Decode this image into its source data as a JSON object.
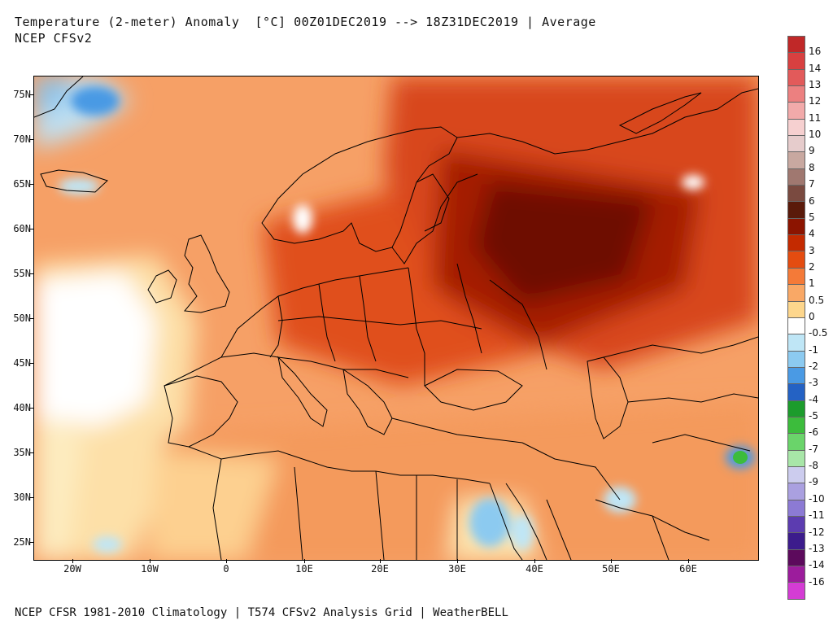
{
  "title": {
    "line1": "Temperature (2-meter) Anomaly  [°C] 00Z01DEC2019 --> 18Z31DEC2019 | Average",
    "line2": "NCEP CFSv2"
  },
  "footer": "NCEP CFSR 1981-2010 Climatology | T574 CFSv2 Analysis Grid | WeatherBELL",
  "lat_labels": [
    "75N",
    "70N",
    "65N",
    "60N",
    "55N",
    "50N",
    "45N",
    "40N",
    "35N",
    "30N",
    "25N"
  ],
  "lon_labels": [
    "20W",
    "10W",
    "0",
    "10E",
    "20E",
    "30E",
    "40E",
    "50E",
    "60E"
  ],
  "colorbar": {
    "labels": [
      "16",
      "14",
      "13",
      "12",
      "11",
      "10",
      "9",
      "8",
      "7",
      "6",
      "5",
      "4",
      "3",
      "2",
      "1",
      "0.5",
      "0",
      "-0.5",
      "-1",
      "-2",
      "-3",
      "-4",
      "-5",
      "-6",
      "-7",
      "-8",
      "-9",
      "-10",
      "-11",
      "-12",
      "-13",
      "-14",
      "-16"
    ],
    "colors": [
      "#c02828",
      "#d84040",
      "#e25a5a",
      "#ec8080",
      "#f2aaaa",
      "#f6d0d0",
      "#e6cccc",
      "#c8a8a0",
      "#a07870",
      "#7a4a40",
      "#5a1a0a",
      "#8c1400",
      "#c42a00",
      "#e44c10",
      "#f47a38",
      "#f9a866",
      "#fdd68c",
      "#ffffff",
      "#bfe6f6",
      "#8ccaf0",
      "#4a9ae4",
      "#2462c4",
      "#1c9c2c",
      "#3cbc3c",
      "#6ad46a",
      "#a8e6a8",
      "#ccccee",
      "#aaa0e0",
      "#8c7ad4",
      "#5c3cb0",
      "#3c1c8c",
      "#5c0a5c",
      "#9c1c9c",
      "#d43cd4"
    ]
  }
}
